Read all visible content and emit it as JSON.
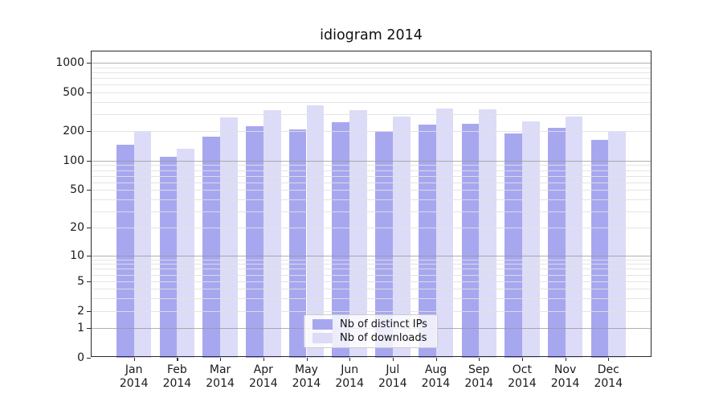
{
  "title": "idiogram 2014",
  "chart_data": {
    "type": "bar",
    "title": "idiogram 2014",
    "yscale": "log1p",
    "ylim": [
      0,
      1340
    ],
    "grid": true,
    "legend_position": "lower center",
    "categories": [
      "Jan",
      "Feb",
      "Mar",
      "Apr",
      "May",
      "Jun",
      "Jul",
      "Aug",
      "Sep",
      "Oct",
      "Nov",
      "Dec"
    ],
    "x_year_label": "2014",
    "y_ticks": [
      1000,
      500,
      200,
      100,
      50,
      20,
      10,
      5,
      2,
      1,
      0
    ],
    "series": [
      {
        "key": "distinct_ips",
        "name": "Nb of distinct IPs",
        "color": "#a7a7f0",
        "values": [
          145,
          110,
          178,
          224,
          210,
          248,
          200,
          236,
          240,
          192,
          218,
          165
        ]
      },
      {
        "key": "downloads",
        "name": "Nb of downloads",
        "color": "#dcdcf8",
        "values": [
          200,
          133,
          276,
          330,
          370,
          331,
          285,
          345,
          337,
          254,
          281,
          201
        ]
      }
    ]
  }
}
